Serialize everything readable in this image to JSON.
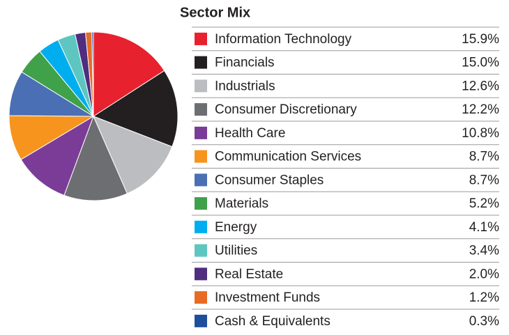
{
  "chart_data": {
    "type": "pie",
    "title": "Sector Mix",
    "categories": [
      "Information Technology",
      "Financials",
      "Industrials",
      "Consumer Discretionary",
      "Health Care",
      "Communication Services",
      "Consumer Staples",
      "Materials",
      "Energy",
      "Utilities",
      "Real Estate",
      "Investment Funds",
      "Cash & Equivalents"
    ],
    "values": [
      15.9,
      15.0,
      12.6,
      12.2,
      10.8,
      8.7,
      8.7,
      5.2,
      4.1,
      3.4,
      2.0,
      1.2,
      0.3
    ],
    "value_labels": [
      "15.9%",
      "15.0%",
      "12.6%",
      "12.2%",
      "10.8%",
      "8.7%",
      "8.7%",
      "5.2%",
      "4.1%",
      "3.4%",
      "2.0%",
      "1.2%",
      "0.3%"
    ],
    "colors": [
      "#e8212e",
      "#231f20",
      "#bcbdc0",
      "#6d6e71",
      "#7b3c97",
      "#f7941d",
      "#4a6fb5",
      "#3fa14a",
      "#00aeef",
      "#5ec6c0",
      "#4f2d7f",
      "#e86b25",
      "#1e4e9c"
    ]
  }
}
